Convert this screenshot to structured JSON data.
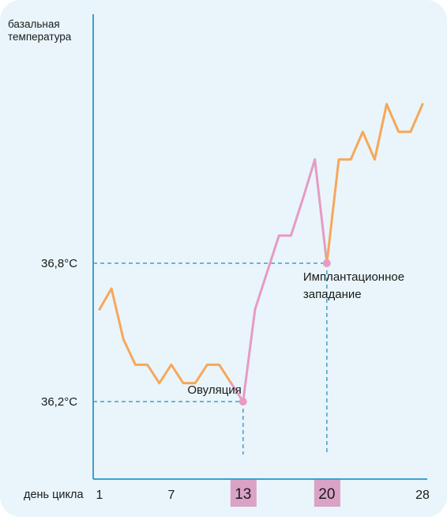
{
  "chart_data": {
    "type": "line",
    "ylabel": "базальная температура",
    "xlabel": "день цикла",
    "x_ticks": [
      {
        "day": 1,
        "label": "1",
        "highlight": false
      },
      {
        "day": 7,
        "label": "7",
        "highlight": false
      },
      {
        "day": 13,
        "label": "13",
        "highlight": true
      },
      {
        "day": 20,
        "label": "20",
        "highlight": true
      },
      {
        "day": 28,
        "label": "28",
        "highlight": false
      }
    ],
    "y_ticks": [
      {
        "value": 36.2,
        "label": "36,2°C"
      },
      {
        "value": 36.8,
        "label": "36,8°C"
      }
    ],
    "x": [
      1,
      2,
      3,
      4,
      5,
      6,
      7,
      8,
      9,
      10,
      11,
      12,
      13,
      14,
      15,
      16,
      17,
      18,
      19,
      20,
      21,
      22,
      23,
      24,
      25,
      26,
      27,
      28
    ],
    "values": [
      36.6,
      36.69,
      36.47,
      36.36,
      36.36,
      36.28,
      36.36,
      36.28,
      36.28,
      36.36,
      36.36,
      36.28,
      36.2,
      36.6,
      36.76,
      36.92,
      36.92,
      37.08,
      37.25,
      36.8,
      37.25,
      37.25,
      37.37,
      37.25,
      37.49,
      37.37,
      37.37,
      37.49
    ],
    "segments": [
      {
        "from": 1,
        "to": 12,
        "color": "#f7a75a"
      },
      {
        "from": 12,
        "to": 19,
        "color": "#e79bc2"
      },
      {
        "from": 19,
        "to": 20,
        "color": "#e79bc2"
      },
      {
        "from": 20,
        "to": 28,
        "color": "#f7a75a"
      }
    ],
    "annotations": [
      {
        "day": 13,
        "value": 36.2,
        "text_lines": [
          "Овуляция"
        ],
        "anchor": "end"
      },
      {
        "day": 20,
        "value": 36.8,
        "text_lines": [
          "Имплантационное",
          "западание"
        ],
        "anchor": "start"
      }
    ],
    "colors": {
      "axis": "#3f9fd0",
      "guide": "#3f9fd0",
      "marker": "#e79bc2",
      "highlight_bg": "#d9a2c6"
    }
  }
}
